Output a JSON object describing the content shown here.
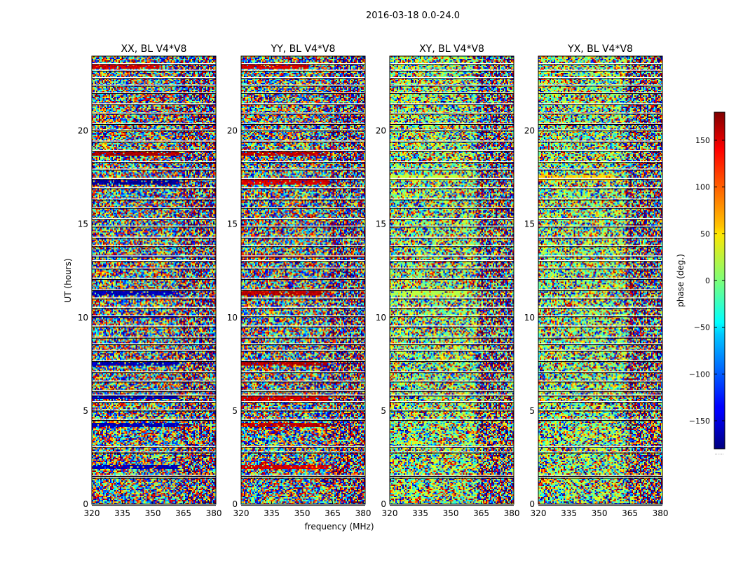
{
  "figure": {
    "suptitle": "2016-03-18 0.0-24.0"
  },
  "chart_data": {
    "type": "heatmap",
    "xlabel": "frequency (MHz)",
    "ylabel": "UT (hours)",
    "xlim": [
      320,
      381
    ],
    "ylim": [
      0,
      24
    ],
    "xticks": [
      320,
      335,
      350,
      365,
      380
    ],
    "yticks": [
      0,
      5,
      10,
      15,
      20
    ],
    "panels": [
      {
        "title": "XX, BL V4*V8",
        "pol": "XX"
      },
      {
        "title": "YY, BL V4*V8",
        "pol": "YY"
      },
      {
        "title": "XY, BL V4*V8",
        "pol": "XY"
      },
      {
        "title": "YX, BL V4*V8",
        "pol": "YX"
      }
    ],
    "colorbar": {
      "label": "phase (deg.)",
      "range": [
        -180,
        180
      ],
      "ticks": [
        -150,
        -100,
        -50,
        0,
        50,
        100,
        150
      ],
      "tick_labels": [
        "−150",
        "−100",
        "−50",
        "0",
        "50",
        "100",
        "150"
      ],
      "colormap": "jet",
      "footer": "......"
    },
    "gap_rows_ut": [
      0.0,
      1.45,
      1.55,
      2.8,
      3.1,
      4.55,
      5.05,
      5.5,
      5.85,
      6.1,
      6.6,
      7.1,
      7.7,
      8.25,
      8.6,
      8.95,
      9.55,
      10.1,
      10.55,
      11.05,
      11.5,
      12.1,
      12.65,
      13.05,
      13.3,
      13.85,
      14.3,
      14.9,
      15.3,
      15.9,
      16.35,
      16.95,
      17.45,
      17.95,
      18.35,
      18.95,
      19.45,
      20.05,
      20.4,
      20.95,
      21.45,
      22.05,
      22.45,
      22.85,
      23.25,
      23.6
    ],
    "coherent_bands": [
      {
        "pol": "XX",
        "ut": [
          1.85,
          2.1
        ],
        "freq": [
          320,
          363
        ],
        "phase": -160
      },
      {
        "pol": "XX",
        "ut": [
          4.1,
          4.35
        ],
        "freq": [
          320,
          363
        ],
        "phase": -160
      },
      {
        "pol": "XX",
        "ut": [
          5.65,
          5.85
        ],
        "freq": [
          320,
          363
        ],
        "phase": -160
      },
      {
        "pol": "XX",
        "ut": [
          7.45,
          7.65
        ],
        "freq": [
          320,
          363
        ],
        "phase": -160
      },
      {
        "pol": "XX",
        "ut": [
          9.95,
          10.15
        ],
        "freq": [
          320,
          363
        ],
        "phase": -160
      },
      {
        "pol": "XX",
        "ut": [
          11.2,
          11.5
        ],
        "freq": [
          320,
          363
        ],
        "phase": -160
      },
      {
        "pol": "XX",
        "ut": [
          13.2,
          13.35
        ],
        "freq": [
          320,
          363
        ],
        "phase": -160
      },
      {
        "pol": "XX",
        "ut": [
          17.1,
          17.4
        ],
        "freq": [
          320,
          363
        ],
        "phase": -170
      },
      {
        "pol": "XX",
        "ut": [
          18.7,
          18.9
        ],
        "freq": [
          320,
          363
        ],
        "phase": 165
      },
      {
        "pol": "XX",
        "ut": [
          23.3,
          23.6
        ],
        "freq": [
          320,
          353
        ],
        "phase": 150
      },
      {
        "pol": "YY",
        "ut": [
          1.85,
          2.1
        ],
        "freq": [
          320,
          363
        ],
        "phase": 150
      },
      {
        "pol": "YY",
        "ut": [
          4.1,
          4.35
        ],
        "freq": [
          320,
          363
        ],
        "phase": 160
      },
      {
        "pol": "YY",
        "ut": [
          5.45,
          5.8
        ],
        "freq": [
          320,
          363
        ],
        "phase": 150
      },
      {
        "pol": "YY",
        "ut": [
          7.45,
          7.65
        ],
        "freq": [
          320,
          363
        ],
        "phase": 160
      },
      {
        "pol": "YY",
        "ut": [
          11.2,
          11.5
        ],
        "freq": [
          320,
          363
        ],
        "phase": 160
      },
      {
        "pol": "YY",
        "ut": [
          13.2,
          13.35
        ],
        "freq": [
          320,
          381
        ],
        "phase": 165
      },
      {
        "pol": "YY",
        "ut": [
          17.1,
          17.45
        ],
        "freq": [
          320,
          363
        ],
        "phase": 150
      },
      {
        "pol": "YY",
        "ut": [
          18.7,
          18.9
        ],
        "freq": [
          320,
          363
        ],
        "phase": 160
      },
      {
        "pol": "YY",
        "ut": [
          23.3,
          23.6
        ],
        "freq": [
          320,
          353
        ],
        "phase": 150
      },
      {
        "pol": "XY",
        "ut": [
          17.3,
          17.6
        ],
        "freq": [
          320,
          358
        ],
        "phase": 25
      },
      {
        "pol": "XY",
        "ut": [
          11.2,
          11.5
        ],
        "freq": [
          320,
          358
        ],
        "phase": 20
      },
      {
        "pol": "YX",
        "ut": [
          17.3,
          17.6
        ],
        "freq": [
          320,
          358
        ],
        "phase": 60
      }
    ]
  }
}
